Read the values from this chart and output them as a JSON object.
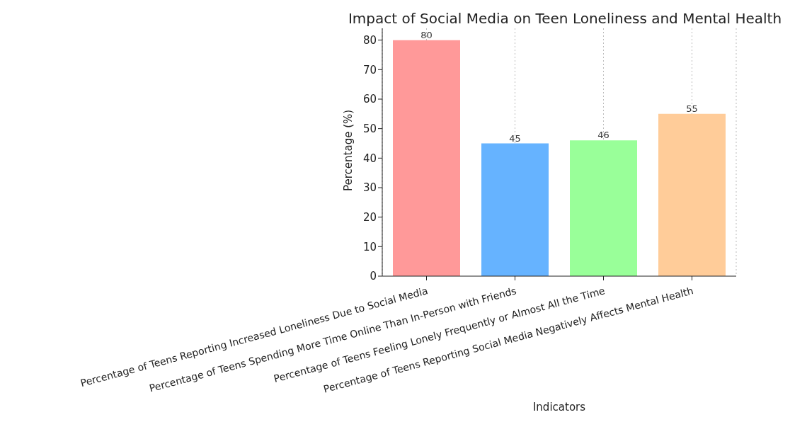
{
  "chart_data": {
    "type": "bar",
    "title": "Impact of Social Media on Teen Loneliness and Mental Health",
    "xlabel": "Indicators",
    "ylabel": "Percentage (%)",
    "categories": [
      "Percentage of Teens Reporting Increased Loneliness Due to Social Media",
      "Percentage of Teens Spending More Time Online Than In-Person with Friends",
      "Percentage of Teens Feeling Lonely Frequently or Almost All the Time",
      "Percentage of Teens Reporting Social Media Negatively Affects Mental Health"
    ],
    "values": [
      80,
      45,
      46,
      55
    ],
    "colors": [
      "#ff9999",
      "#66b3ff",
      "#99ff99",
      "#ffcc99"
    ],
    "ylim": [
      0,
      84
    ],
    "yticks": [
      0,
      10,
      20,
      30,
      40,
      50,
      60,
      70,
      80
    ],
    "grid": "x",
    "data_labels": true
  }
}
